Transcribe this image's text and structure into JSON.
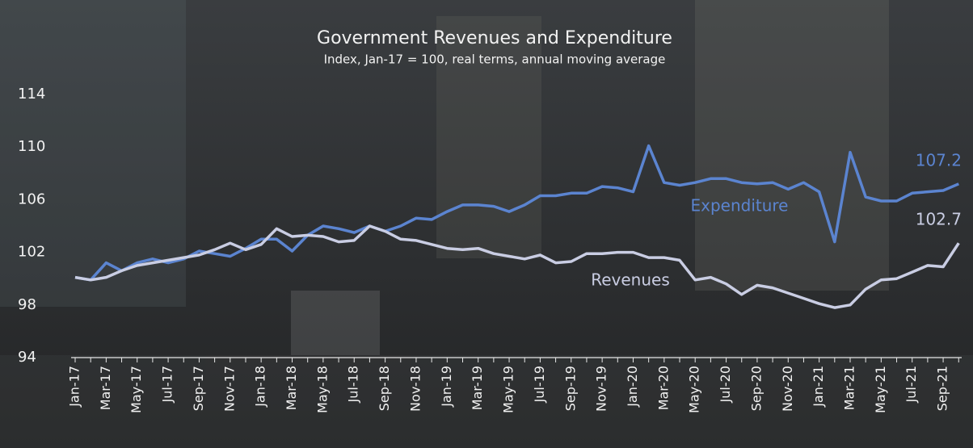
{
  "chart_data": {
    "type": "line",
    "title": "Government Revenues and Expenditure",
    "subtitle": "Index, Jan-17 = 100, real terms, annual moving average",
    "categories": [
      "Jan-17",
      null,
      "Mar-17",
      null,
      "May-17",
      null,
      "Jul-17",
      null,
      "Sep-17",
      null,
      "Nov-17",
      null,
      "Jan-18",
      null,
      "Mar-18",
      null,
      "May-18",
      null,
      "Jul-18",
      null,
      "Sep-18",
      null,
      "Nov-18",
      null,
      "Jan-19",
      null,
      "Mar-19",
      null,
      "May-19",
      null,
      "Jul-19",
      null,
      "Sep-19",
      null,
      "Nov-19",
      null,
      "Jan-20",
      null,
      "Mar-20",
      null,
      "May-20",
      null,
      "Jul-20",
      null,
      "Sep-20",
      null,
      "Nov-20",
      null,
      "Jan-21",
      null,
      "Mar-21",
      null,
      "May-21",
      null,
      "Jul-21",
      null,
      "Sep-21",
      null
    ],
    "series": [
      {
        "name": "Expenditure",
        "color": "#5b84d0",
        "values": [
          100.1,
          99.9,
          101.2,
          100.6,
          101.2,
          101.5,
          101.2,
          101.5,
          102.1,
          101.9,
          101.7,
          102.3,
          103.0,
          103.0,
          102.1,
          103.3,
          104.0,
          103.8,
          103.5,
          104.0,
          103.6,
          104.0,
          104.6,
          104.5,
          105.1,
          105.6,
          105.6,
          105.5,
          105.1,
          105.6,
          106.3,
          106.3,
          106.5,
          106.5,
          107.0,
          106.9,
          106.6,
          110.1,
          107.3,
          107.1,
          107.3,
          107.6,
          107.6,
          107.3,
          107.2,
          107.3,
          106.8,
          107.3,
          106.6,
          102.8,
          109.6,
          106.2,
          105.9,
          105.9,
          106.5,
          106.6,
          106.7,
          107.2
        ]
      },
      {
        "name": "Revenues",
        "color": "#c9cde3",
        "values": [
          100.1,
          99.9,
          100.1,
          100.6,
          101.0,
          101.2,
          101.4,
          101.6,
          101.8,
          102.2,
          102.7,
          102.2,
          102.6,
          103.8,
          103.2,
          103.3,
          103.2,
          102.8,
          102.9,
          104.0,
          103.6,
          103.0,
          102.9,
          102.6,
          102.3,
          102.2,
          102.3,
          101.9,
          101.7,
          101.5,
          101.8,
          101.2,
          101.3,
          101.9,
          101.9,
          102.0,
          102.0,
          101.6,
          101.6,
          101.4,
          99.9,
          100.1,
          99.6,
          98.8,
          99.5,
          99.3,
          98.9,
          98.5,
          98.1,
          97.8,
          98.0,
          99.2,
          99.9,
          100.0,
          100.5,
          101.0,
          100.9,
          102.7
        ]
      }
    ],
    "ylim": [
      94,
      114
    ],
    "yticks": [
      94,
      98,
      102,
      106,
      110,
      114
    ],
    "grid": false
  }
}
